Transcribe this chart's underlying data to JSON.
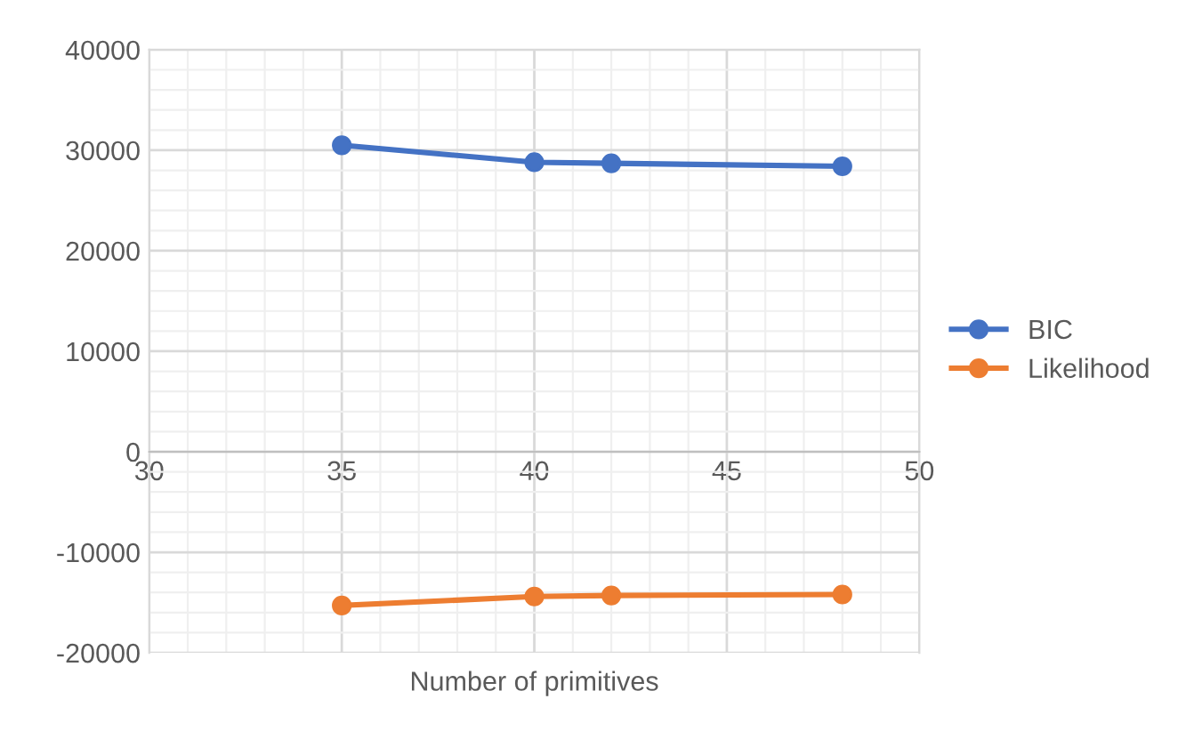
{
  "chart_data": {
    "type": "line",
    "xlabel": "Number of primitives",
    "x": [
      35,
      40,
      42,
      48
    ],
    "series": [
      {
        "name": "BIC",
        "color": "#4472c4",
        "values": [
          30500,
          28800,
          28700,
          28400
        ]
      },
      {
        "name": "Likelihood",
        "color": "#ed7d31",
        "values": [
          -15300,
          -14400,
          -14300,
          -14200
        ]
      }
    ],
    "xlim": [
      30,
      50
    ],
    "xticks": [
      30,
      35,
      40,
      45,
      50
    ],
    "ylim": [
      -20000,
      40000
    ],
    "yticks": [
      -20000,
      -10000,
      0,
      10000,
      20000,
      30000,
      40000
    ],
    "grid": true,
    "legend": "right",
    "marker": "circle",
    "line_style": "solid"
  }
}
